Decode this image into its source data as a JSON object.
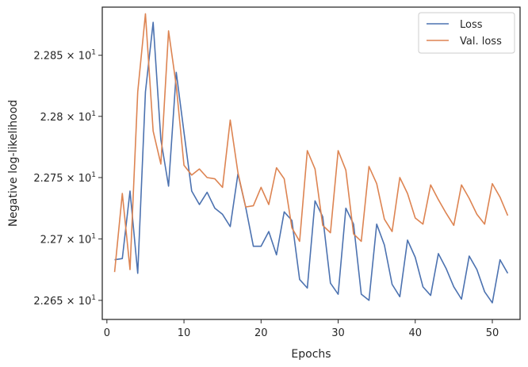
{
  "chart_data": {
    "type": "line",
    "title": "",
    "xlabel": "Epochs",
    "ylabel": "Negative log-likelihood",
    "xlim": [
      -0.6,
      53.6
    ],
    "ylim": [
      22.6345,
      22.8895
    ],
    "y_scale": "log",
    "grid": false,
    "legend_position": "top-right",
    "x_ticks": [
      {
        "value": 0,
        "label": "0"
      },
      {
        "value": 10,
        "label": "10"
      },
      {
        "value": 20,
        "label": "20"
      },
      {
        "value": 30,
        "label": "30"
      },
      {
        "value": 40,
        "label": "40"
      },
      {
        "value": 50,
        "label": "50"
      }
    ],
    "y_ticks": [
      {
        "value": 22.65,
        "mantissa": "2.265",
        "base": "10",
        "exponent": "1"
      },
      {
        "value": 22.7,
        "mantissa": "2.27",
        "base": "10",
        "exponent": "1"
      },
      {
        "value": 22.75,
        "mantissa": "2.275",
        "base": "10",
        "exponent": "1"
      },
      {
        "value": 22.8,
        "mantissa": "2.28",
        "base": "10",
        "exponent": "1"
      },
      {
        "value": 22.85,
        "mantissa": "2.285",
        "base": "10",
        "exponent": "1"
      }
    ],
    "x": [
      1,
      2,
      3,
      4,
      5,
      6,
      7,
      8,
      9,
      10,
      11,
      12,
      13,
      14,
      15,
      16,
      17,
      18,
      19,
      20,
      21,
      22,
      23,
      24,
      25,
      26,
      27,
      28,
      29,
      30,
      31,
      32,
      33,
      34,
      35,
      36,
      37,
      38,
      39,
      40,
      41,
      42,
      43,
      44,
      45,
      46,
      47,
      48,
      49,
      50,
      51,
      52
    ],
    "series": [
      {
        "name": "Loss",
        "color": "#4c72b0",
        "values": [
          22.683,
          22.684,
          22.739,
          22.672,
          22.82,
          22.877,
          22.781,
          22.743,
          22.836,
          22.787,
          22.739,
          22.728,
          22.738,
          22.725,
          22.72,
          22.71,
          22.753,
          22.726,
          22.694,
          22.694,
          22.706,
          22.687,
          22.722,
          22.715,
          22.667,
          22.66,
          22.731,
          22.718,
          22.664,
          22.655,
          22.725,
          22.712,
          22.655,
          22.65,
          22.712,
          22.695,
          22.663,
          22.653,
          22.699,
          22.685,
          22.661,
          22.654,
          22.688,
          22.676,
          22.661,
          22.651,
          22.686,
          22.675,
          22.657,
          22.648,
          22.683,
          22.672
        ]
      },
      {
        "name": "Val. loss",
        "color": "#dd8452",
        "values": [
          22.673,
          22.737,
          22.675,
          22.82,
          22.884,
          22.788,
          22.761,
          22.87,
          22.825,
          22.76,
          22.752,
          22.757,
          22.75,
          22.749,
          22.742,
          22.797,
          22.754,
          22.726,
          22.727,
          22.742,
          22.728,
          22.758,
          22.749,
          22.709,
          22.698,
          22.772,
          22.757,
          22.711,
          22.705,
          22.772,
          22.756,
          22.704,
          22.698,
          22.759,
          22.745,
          22.716,
          22.706,
          22.75,
          22.737,
          22.717,
          22.712,
          22.744,
          22.732,
          22.721,
          22.711,
          22.744,
          22.733,
          22.72,
          22.712,
          22.745,
          22.734,
          22.719
        ]
      }
    ]
  }
}
